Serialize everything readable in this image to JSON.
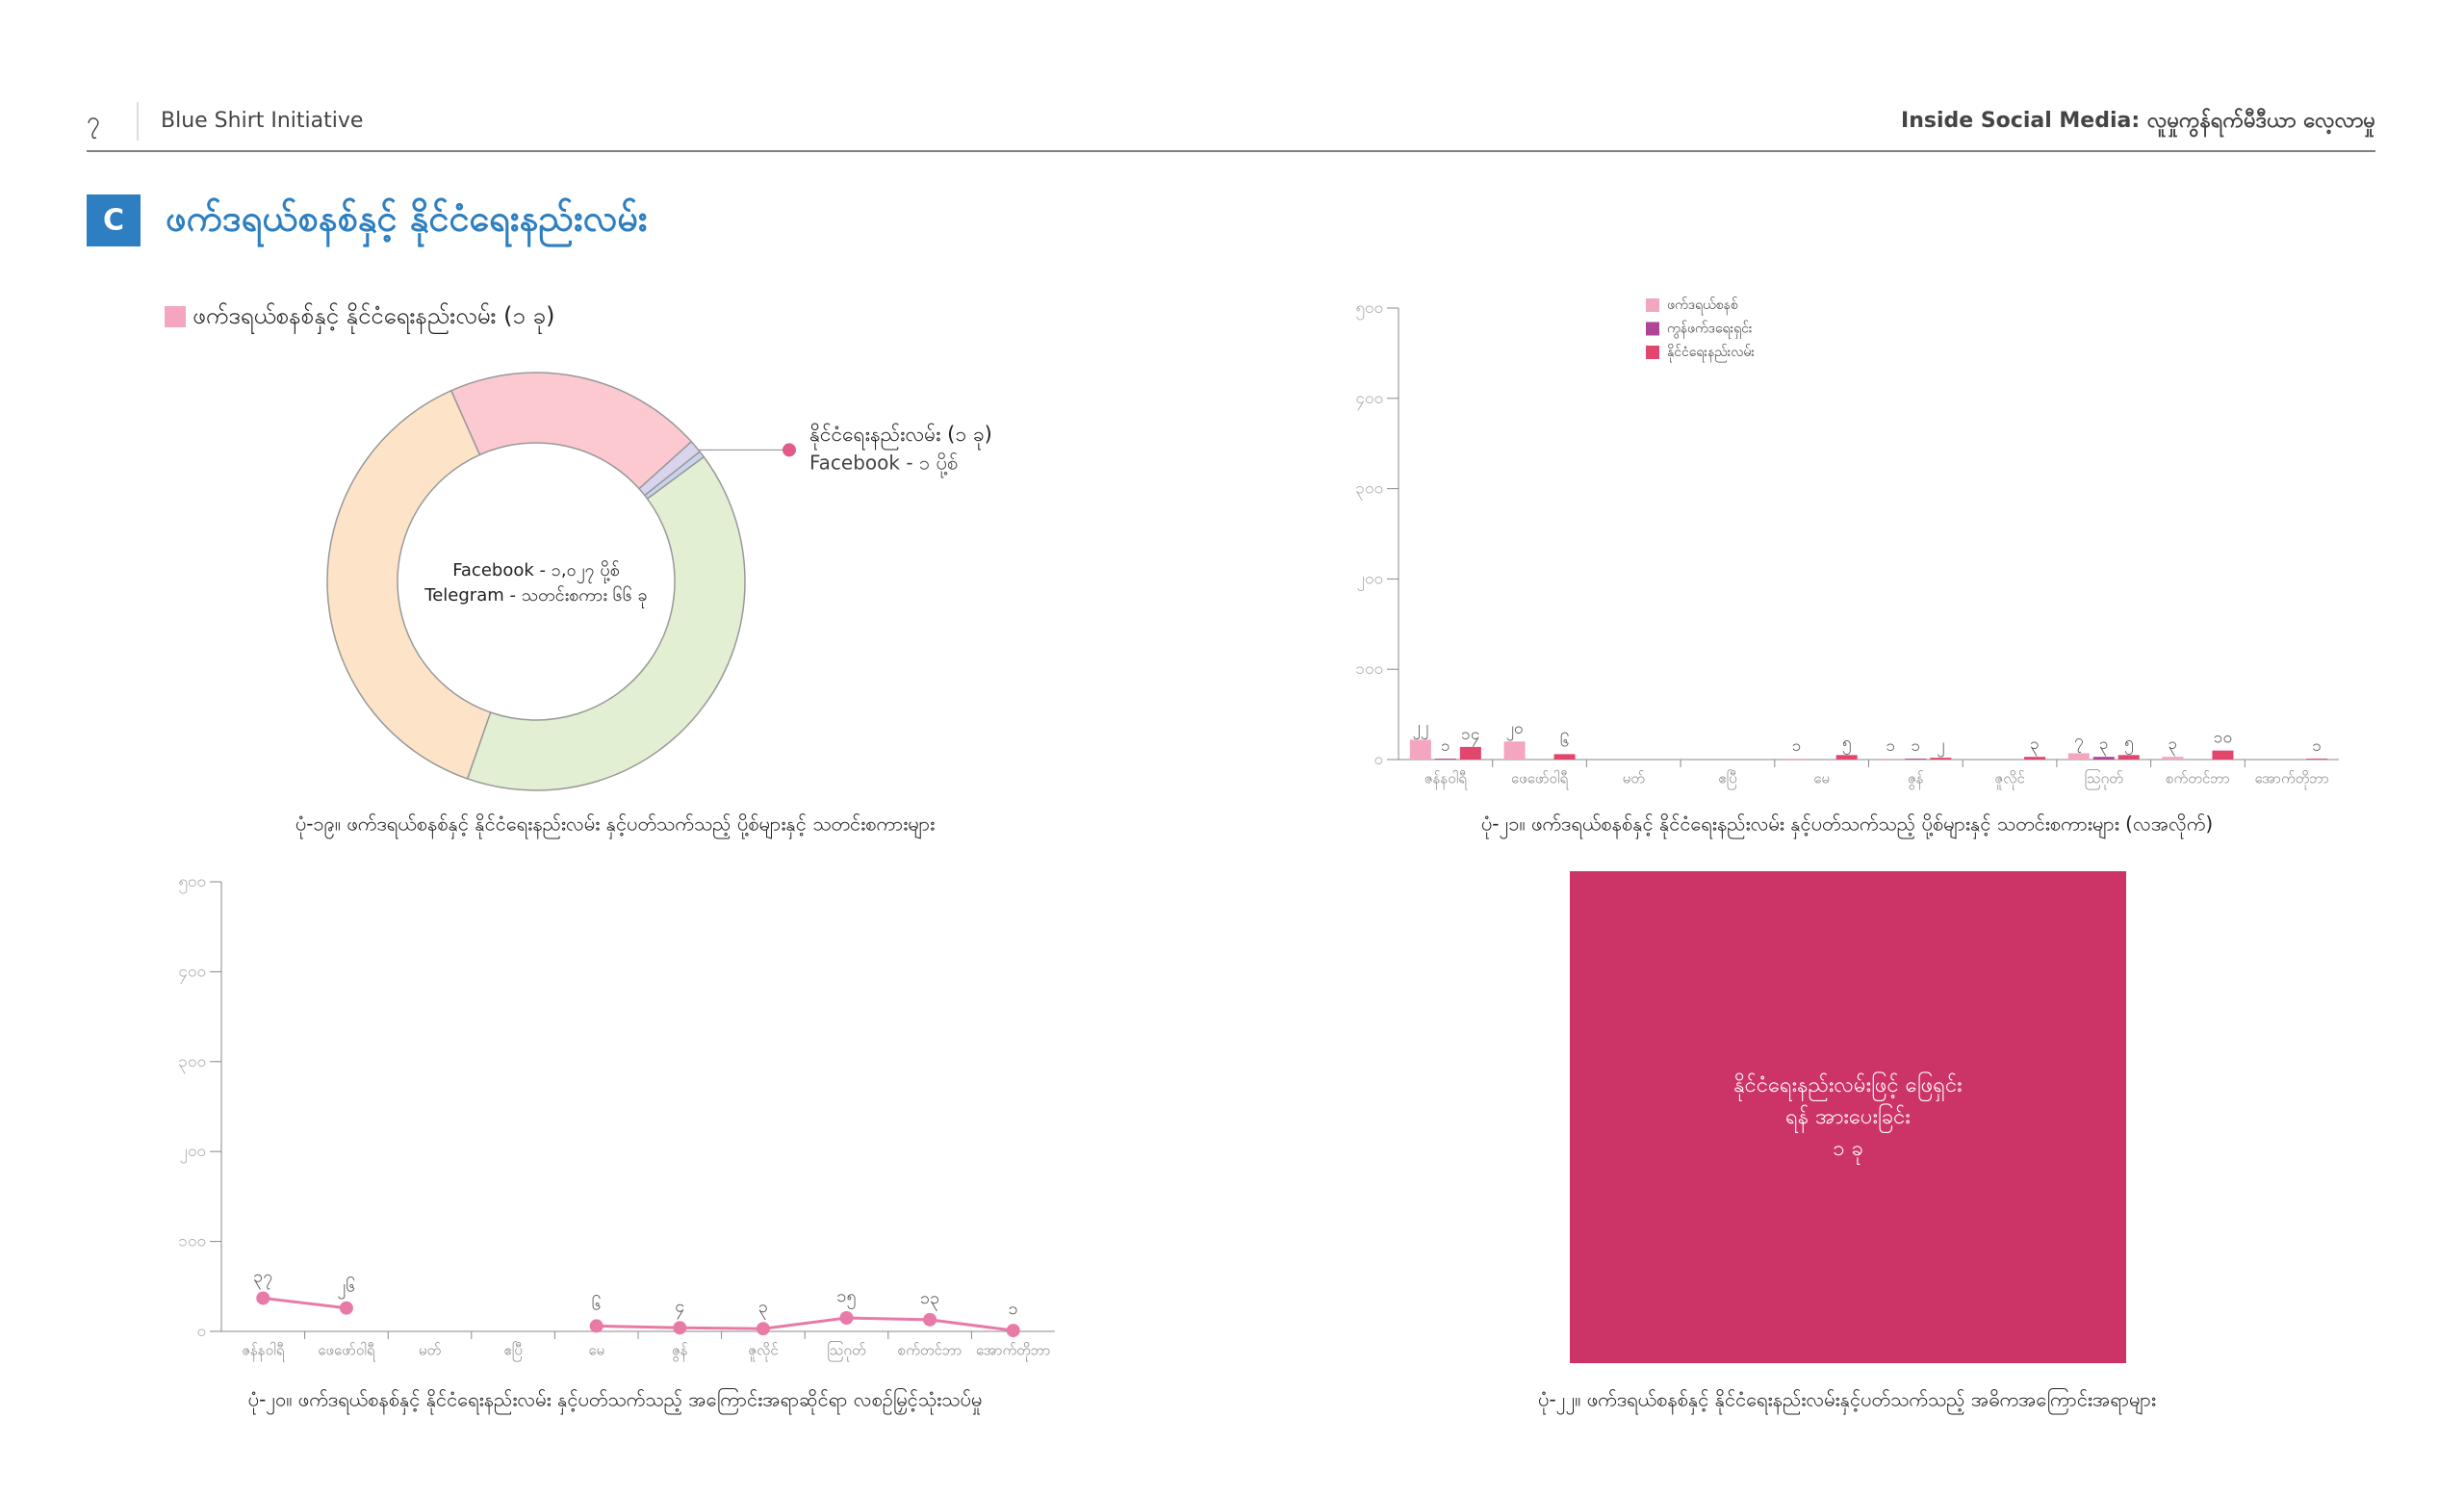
{
  "header": {
    "page_number": "၇",
    "publisher": "Blue Shirt Initiative",
    "report_title": "Inside Social Media: လူမှုကွန်ရက်မီဒီယာ လေ့လာမှု"
  },
  "section": {
    "badge": "C",
    "title": "ဖက်ဒရယ်စနစ်နှင့် နိုင်ငံရေးနည်းလမ်း"
  },
  "chart_data": [
    {
      "type": "donut",
      "legend_label": "ဖက်ဒရယ်စနစ်နှင့် နိုင်ငံရေးနည်းလမ်း (၁ ခု)",
      "legend_color": "#f4a6c0",
      "center_text": [
        "Facebook - ၁,၀၂၇ ပို့စ်",
        "Telegram - သတင်းစကား ၆၆ ခု"
      ],
      "annotation": [
        "နိုင်ငံရေးနည်းလမ်း (၁ ခု)",
        "Facebook -   ၁ ပို့စ်"
      ],
      "values": [
        20,
        1,
        0.5,
        40.5,
        38
      ],
      "colors": [
        "#fbc9cf",
        "#d9d4ee",
        "#c8d3ec",
        "#e2efd3",
        "#fde4c8"
      ],
      "caption": "ပုံ-၁၉။ ဖက်ဒရယ်စနစ်နှင့် နိုင်ငံရေးနည်းလမ်း နှင့်ပတ်သက်သည့် ပို့စ်များနှင့် သတင်းစကားများ"
    },
    {
      "type": "bar",
      "categories": [
        "ဇန်နဝါရီ",
        "ဖေဖော်ဝါရီ",
        "မတ်",
        "ဧပြီ",
        "မေ",
        "ဇွန်",
        "ဇူလိုင်",
        "ဩဂုတ်",
        "စက်တင်ဘာ",
        "အောက်တိုဘာ"
      ],
      "series": [
        {
          "name": "ဖက်ဒရယ်စနစ်",
          "color": "#f4a6c0",
          "values": [
            22,
            20,
            null,
            null,
            1,
            1,
            null,
            7,
            3,
            null
          ],
          "value_labels": [
            "၂၂",
            "၂၀",
            null,
            null,
            "၁",
            "၁",
            null,
            "၇",
            "၃",
            null
          ]
        },
        {
          "name": "ကွန်ဖက်ဒရေးရှင်း",
          "color": "#b04497",
          "values": [
            1,
            null,
            null,
            null,
            null,
            1,
            null,
            3,
            null,
            null
          ],
          "value_labels": [
            "၁",
            null,
            null,
            null,
            null,
            "၁",
            null,
            "၃",
            null,
            null
          ]
        },
        {
          "name": "နိုင်ငံရေးနည်းလမ်း",
          "color": "#e2466f",
          "values": [
            14,
            6,
            null,
            null,
            5,
            2,
            3,
            5,
            10,
            1
          ],
          "value_labels": [
            "၁၄",
            "၆",
            null,
            null,
            "၅",
            "၂",
            "၃",
            "၅",
            "၁၀",
            "၁"
          ]
        }
      ],
      "ylim": [
        0,
        500
      ],
      "yticks": [
        {
          "value": 0,
          "label": "၀"
        },
        {
          "value": 100,
          "label": "၁၀၀"
        },
        {
          "value": 200,
          "label": "၂၀၀"
        },
        {
          "value": 300,
          "label": "၃၀၀"
        },
        {
          "value": 400,
          "label": "၄၀၀"
        },
        {
          "value": 500,
          "label": "၅၀၀"
        }
      ],
      "legend": "upper-left",
      "caption": "ပုံ-၂၁။ ဖက်ဒရယ်စနစ်နှင့် နိုင်ငံရေးနည်းလမ်း နှင့်ပတ်သက်သည့် ပို့စ်များနှင့် သတင်းစကားများ (လအလိုက်)"
    },
    {
      "type": "line",
      "categories": [
        "ဇန်နဝါရီ",
        "ဖေဖော်ဝါရီ",
        "မတ်",
        "ဧပြီ",
        "မေ",
        "ဇွန်",
        "ဇူလိုင်",
        "ဩဂုတ်",
        "စက်တင်ဘာ",
        "အောက်တိုဘာ"
      ],
      "series": [
        {
          "color": "#e87aa8",
          "values": [
            37,
            26,
            null,
            null,
            6,
            4,
            3,
            15,
            13,
            1
          ],
          "value_labels": [
            "၃၇",
            "၂၆",
            null,
            null,
            "၆",
            "၄",
            "၃",
            "၁၅",
            "၁၃",
            "၁"
          ]
        }
      ],
      "ylim": [
        0,
        500
      ],
      "yticks": [
        {
          "value": 0,
          "label": "၀"
        },
        {
          "value": 100,
          "label": "၁၀၀"
        },
        {
          "value": 200,
          "label": "၂၀၀"
        },
        {
          "value": 300,
          "label": "၃၀၀"
        },
        {
          "value": 400,
          "label": "၄၀၀"
        },
        {
          "value": 500,
          "label": "၅၀၀"
        }
      ],
      "caption": "ပုံ-၂၀။ ဖက်ဒရယ်စနစ်နှင့် နိုင်ငံရေးနည်းလမ်း နှင့်ပတ်သက်သည့် အကြောင်းအရာဆိုင်ရာ လစဉ်မြှင့်သုံးသပ်မှု"
    },
    {
      "type": "treemap",
      "labels": [
        "နိုင်ငံရေးနည်းလမ်းဖြင့် ဖြေရှင်းရန် အားပေးခြင်း"
      ],
      "values": [
        1
      ],
      "value_labels": [
        "၁ ခု"
      ],
      "color": "#cc3366",
      "caption": "ပုံ-၂၂။ ဖက်ဒရယ်စနစ်နှင့် နိုင်ငံရေးနည်းလမ်းနှင့်ပတ်သက်သည့် အဓိကအကြောင်းအရာများ"
    }
  ]
}
